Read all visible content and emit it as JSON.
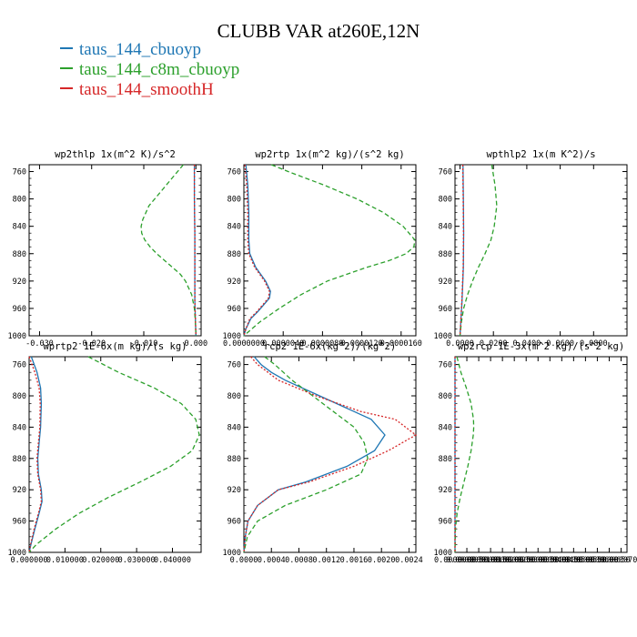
{
  "title": "CLUBB VAR at260E,12N",
  "legend": [
    {
      "label": "taus_144_cbuoyp",
      "color": "#1f77b4"
    },
    {
      "label": "taus_144_c8m_cbuoyp",
      "color": "#2ca02c"
    },
    {
      "label": "taus_144_smoothH",
      "color": "#d62728"
    }
  ],
  "chart_data": [
    {
      "type": "line",
      "title": "wp2thlp  1x(m^2 K)/s^2",
      "xlim": [
        -0.032,
        0.001
      ],
      "ylim": [
        1000,
        750
      ],
      "xticks": [
        -0.03,
        -0.02,
        -0.01,
        0.0
      ],
      "xtick_labels": [
        "-0.030",
        "-0.020",
        "-0.010",
        "0.000"
      ],
      "yticks": [
        760,
        800,
        840,
        880,
        920,
        960,
        1000
      ],
      "ytick_labels": [
        "760",
        "800",
        "840",
        "880",
        "920",
        "960",
        "1000"
      ],
      "series": [
        {
          "name": "taus_144_cbuoyp",
          "color": "#1f77b4",
          "dash": "none",
          "y": [
            750,
            800,
            850,
            900,
            950,
            1000
          ],
          "x": [
            -0.0003,
            -0.0003,
            -0.0002,
            -0.0002,
            -0.0002,
            0.0
          ]
        },
        {
          "name": "taus_144_c8m_cbuoyp",
          "color": "#2ca02c",
          "dash": "5,3",
          "y": [
            750,
            770,
            790,
            810,
            830,
            840,
            850,
            860,
            870,
            880,
            890,
            900,
            910,
            920,
            940,
            960,
            980,
            1000
          ],
          "x": [
            -0.0024,
            -0.0046,
            -0.0068,
            -0.009,
            -0.0102,
            -0.0105,
            -0.0104,
            -0.0098,
            -0.0088,
            -0.0075,
            -0.006,
            -0.0045,
            -0.003,
            -0.002,
            -0.0008,
            -0.0003,
            -0.0001,
            0.0
          ]
        },
        {
          "name": "taus_144_smoothH",
          "color": "#d62728",
          "dash": "2,2",
          "y": [
            750,
            800,
            850,
            900,
            950,
            1000
          ],
          "x": [
            -0.0003,
            -0.0003,
            -0.0002,
            -0.0002,
            -0.0002,
            0.0
          ]
        }
      ]
    },
    {
      "type": "line",
      "title": "wp2rtp  1x(m^2 kg)/(s^2 kg)",
      "xlim": [
        0.0,
        1.75e-05
      ],
      "ylim": [
        1000,
        750
      ],
      "xticks": [
        0.0,
        4e-06,
        8e-06,
        1.2e-05,
        1.6e-05
      ],
      "xtick_labels": [
        "0.0000000",
        "0.0000040",
        "0.0000080",
        "0.0000120",
        "0.0000160"
      ],
      "yticks": [
        760,
        800,
        840,
        880,
        920,
        960,
        1000
      ],
      "ytick_labels": [
        "760",
        "800",
        "840",
        "880",
        "920",
        "960",
        "1000"
      ],
      "series": [
        {
          "name": "taus_144_cbuoyp",
          "color": "#1f77b4",
          "dash": "none",
          "y": [
            750,
            780,
            820,
            860,
            880,
            900,
            920,
            935,
            945,
            955,
            965,
            975,
            990,
            1000
          ],
          "x": [
            2e-07,
            4e-07,
            5e-07,
            5e-07,
            6e-07,
            1.2e-06,
            2.2e-06,
            2.7e-06,
            2.6e-06,
            2e-06,
            1.4e-06,
            7e-07,
            2e-07,
            0.0
          ]
        },
        {
          "name": "taus_144_c8m_cbuoyp",
          "color": "#2ca02c",
          "dash": "5,3",
          "y": [
            750,
            760,
            780,
            800,
            820,
            840,
            860,
            870,
            880,
            890,
            900,
            920,
            940,
            960,
            980,
            1000
          ],
          "x": [
            2.8e-06,
            4.5e-06,
            8.2e-06,
            1.15e-05,
            1.42e-05,
            1.62e-05,
            1.74e-05,
            1.73e-05,
            1.65e-05,
            1.48e-05,
            1.25e-05,
            8.5e-06,
            5.8e-06,
            3.6e-06,
            1.6e-06,
            0.0
          ]
        },
        {
          "name": "taus_144_smoothH",
          "color": "#d62728",
          "dash": "2,2",
          "y": [
            750,
            780,
            820,
            860,
            880,
            900,
            920,
            935,
            945,
            955,
            965,
            975,
            990,
            1000
          ],
          "x": [
            1e-07,
            3e-07,
            4e-07,
            4e-07,
            5e-07,
            1.1e-06,
            2.1e-06,
            2.6e-06,
            2.5e-06,
            1.9e-06,
            1.3e-06,
            6e-07,
            2e-07,
            0.0
          ]
        }
      ]
    },
    {
      "type": "line",
      "title": "wpthlp2  1x(m K^2)/s",
      "xlim": [
        -0.003,
        0.1
      ],
      "ylim": [
        1000,
        750
      ],
      "xticks": [
        0.0,
        0.02,
        0.04,
        0.06,
        0.08
      ],
      "xtick_labels": [
        "0.0000",
        "0.0200",
        "0.0400",
        "0.0600",
        "0.0800"
      ],
      "yticks": [
        760,
        800,
        840,
        880,
        920,
        960,
        1000
      ],
      "ytick_labels": [
        "760",
        "800",
        "840",
        "880",
        "920",
        "960",
        "1000"
      ],
      "series": [
        {
          "name": "taus_144_cbuoyp",
          "color": "#1f77b4",
          "dash": "none",
          "y": [
            750,
            800,
            850,
            900,
            950,
            1000
          ],
          "x": [
            0.0018,
            0.002,
            0.0022,
            0.002,
            0.0012,
            0.0
          ]
        },
        {
          "name": "taus_144_c8m_cbuoyp",
          "color": "#2ca02c",
          "dash": "5,3",
          "y": [
            750,
            780,
            810,
            840,
            860,
            880,
            900,
            920,
            940,
            960,
            980,
            1000
          ],
          "x": [
            0.019,
            0.021,
            0.022,
            0.0205,
            0.0185,
            0.015,
            0.011,
            0.0075,
            0.0045,
            0.0022,
            0.0008,
            0.0
          ]
        },
        {
          "name": "taus_144_smoothH",
          "color": "#d62728",
          "dash": "2,2",
          "y": [
            750,
            800,
            850,
            900,
            950,
            1000
          ],
          "x": [
            0.0017,
            0.0019,
            0.0021,
            0.0019,
            0.0011,
            0.0
          ]
        }
      ]
    },
    {
      "type": "line",
      "title": "wprtp2  1E-6x(m kg)/(s kg)",
      "xlim": [
        0.0,
        0.048
      ],
      "ylim": [
        1000,
        750
      ],
      "xticks": [
        0.0,
        0.01,
        0.02,
        0.03,
        0.04
      ],
      "xtick_labels": [
        "0.000000",
        "0.010000",
        "0.020000",
        "0.030000",
        "0.040000"
      ],
      "yticks": [
        760,
        800,
        840,
        880,
        920,
        960,
        1000
      ],
      "ytick_labels": [
        "760",
        "800",
        "840",
        "880",
        "920",
        "960",
        "1000"
      ],
      "series": [
        {
          "name": "taus_144_cbuoyp",
          "color": "#1f77b4",
          "dash": "none",
          "y": [
            750,
            770,
            790,
            810,
            840,
            860,
            880,
            900,
            920,
            935,
            950,
            970,
            990,
            1000
          ],
          "x": [
            0.0006,
            0.0022,
            0.0032,
            0.0034,
            0.0032,
            0.0028,
            0.0024,
            0.0026,
            0.0034,
            0.0036,
            0.0028,
            0.0016,
            0.0005,
            0.0
          ]
        },
        {
          "name": "taus_144_c8m_cbuoyp",
          "color": "#2ca02c",
          "dash": "5,3",
          "y": [
            750,
            770,
            790,
            810,
            830,
            850,
            870,
            890,
            910,
            930,
            950,
            970,
            990,
            1000
          ],
          "x": [
            0.0165,
            0.025,
            0.035,
            0.0425,
            0.0465,
            0.0475,
            0.0455,
            0.0395,
            0.031,
            0.022,
            0.014,
            0.0075,
            0.002,
            0.0
          ]
        },
        {
          "name": "taus_144_smoothH",
          "color": "#d62728",
          "dash": "2,2",
          "y": [
            750,
            770,
            790,
            810,
            840,
            860,
            880,
            900,
            920,
            935,
            950,
            970,
            990,
            1000
          ],
          "x": [
            0.0,
            0.0016,
            0.0028,
            0.0031,
            0.003,
            0.0026,
            0.0022,
            0.0024,
            0.0032,
            0.0034,
            0.0026,
            0.0014,
            0.0004,
            0.0
          ]
        }
      ]
    },
    {
      "type": "line",
      "title": "rcp2  1E-6x(kg^2)/(kg^2)",
      "xlim": [
        0.0,
        0.0025
      ],
      "ylim": [
        1000,
        750
      ],
      "xticks": [
        0.0,
        0.0004,
        0.0008,
        0.0012,
        0.0016,
        0.002,
        0.0024
      ],
      "xtick_labels": [
        "0.0000",
        "0.0004",
        "0.0008",
        "0.0012",
        "0.0016",
        "0.0020",
        "0.0024"
      ],
      "yticks": [
        760,
        800,
        840,
        880,
        920,
        960,
        1000
      ],
      "ytick_labels": [
        "760",
        "800",
        "840",
        "880",
        "920",
        "960",
        "1000"
      ],
      "series": [
        {
          "name": "taus_144_cbuoyp",
          "color": "#1f77b4",
          "dash": "none",
          "y": [
            750,
            760,
            770,
            780,
            800,
            820,
            830,
            850,
            870,
            890,
            910,
            920,
            940,
            960,
            980,
            1000
          ],
          "x": [
            0.00015,
            0.00025,
            0.0004,
            0.0006,
            0.0011,
            0.0016,
            0.00185,
            0.00205,
            0.0019,
            0.0015,
            0.0009,
            0.0005,
            0.0002,
            6e-05,
            2e-05,
            0.0
          ]
        },
        {
          "name": "taus_144_c8m_cbuoyp",
          "color": "#2ca02c",
          "dash": "5,3",
          "y": [
            750,
            760,
            780,
            800,
            820,
            840,
            860,
            880,
            900,
            920,
            940,
            960,
            980,
            1000
          ],
          "x": [
            0.0003,
            0.00045,
            0.0007,
            0.001,
            0.0013,
            0.0016,
            0.00175,
            0.0018,
            0.0017,
            0.0012,
            0.0006,
            0.0002,
            5e-05,
            0.0
          ]
        },
        {
          "name": "taus_144_smoothH",
          "color": "#d62728",
          "dash": "2,2",
          "y": [
            750,
            760,
            770,
            780,
            800,
            820,
            830,
            850,
            870,
            890,
            910,
            920,
            940,
            960,
            980,
            1000
          ],
          "x": [
            0.0001,
            0.0002,
            0.00035,
            0.0005,
            0.00105,
            0.0017,
            0.0022,
            0.0025,
            0.0021,
            0.0016,
            0.00095,
            0.0005,
            0.0002,
            6e-05,
            2e-05,
            0.0
          ]
        }
      ]
    },
    {
      "type": "line",
      "title": "wp2rcp  1E-3x(m^2 kg)/(s^2 kg)",
      "xlim": [
        0.0,
        7.25e-05
      ],
      "ylim": [
        1000,
        750
      ],
      "xticks": [
        0.0,
        5e-06,
        1e-05,
        1.5e-05,
        2e-05,
        2.5e-05,
        3e-05,
        3.5e-05,
        4e-05,
        4.5e-05,
        5e-05,
        5.5e-05,
        6e-05,
        6.5e-05,
        7e-05
      ],
      "xtick_labels": [
        "0.0000000",
        "0.0000050",
        "0.0000100",
        "0.0000150",
        "0.0000200",
        "0.0000250",
        "0.0000300",
        "0.0000350",
        "0.0000400",
        "0.0000450",
        "0.0000500",
        "0.0000550",
        "0.0000600",
        "0.0000650",
        "0.0000700"
      ],
      "yticks": [
        760,
        800,
        840,
        880,
        920,
        960,
        1000
      ],
      "ytick_labels": [
        "760",
        "800",
        "840",
        "880",
        "920",
        "960",
        "1000"
      ],
      "series": [
        {
          "name": "taus_144_cbuoyp",
          "color": "#1f77b4",
          "dash": "none",
          "y": [
            750,
            800,
            850,
            900,
            950,
            1000
          ],
          "x": [
            0.0,
            0.0,
            0.0,
            0.0,
            0.0,
            0.0
          ]
        },
        {
          "name": "taus_144_c8m_cbuoyp",
          "color": "#2ca02c",
          "dash": "5,3",
          "y": [
            750,
            770,
            790,
            810,
            830,
            840,
            850,
            870,
            890,
            910,
            930,
            950,
            970,
            1000
          ],
          "x": [
            8e-07,
            2.5e-06,
            4.8e-06,
            6.8e-06,
            7.8e-06,
            7.9e-06,
            7.7e-06,
            6.8e-06,
            5.4e-06,
            3.8e-06,
            2.2e-06,
            9e-07,
            2e-07,
            0.0
          ]
        },
        {
          "name": "taus_144_smoothH",
          "color": "#d62728",
          "dash": "2,2",
          "y": [
            750,
            800,
            850,
            900,
            950,
            1000
          ],
          "x": [
            0.0,
            0.0,
            0.0,
            0.0,
            0.0,
            0.0
          ]
        }
      ]
    }
  ]
}
